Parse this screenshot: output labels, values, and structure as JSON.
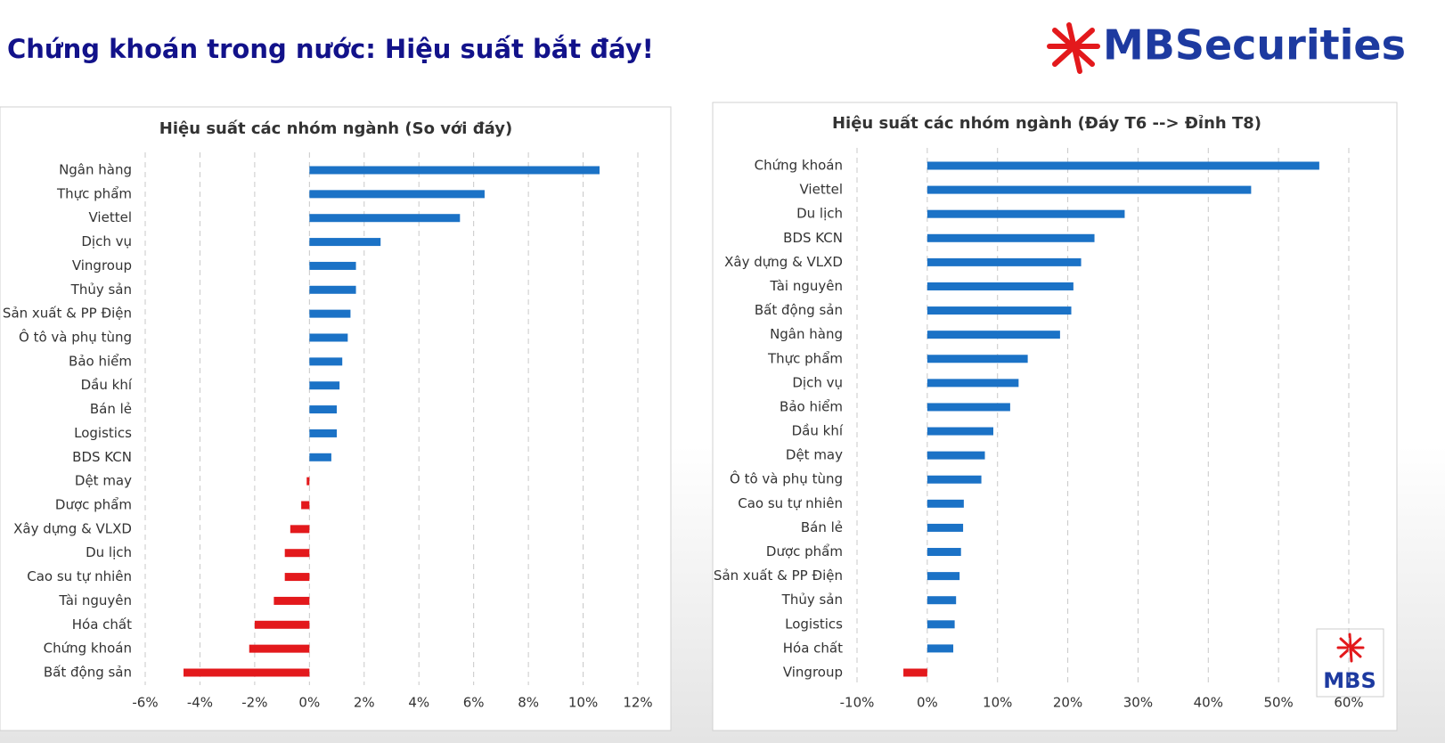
{
  "header": {
    "title": "Chứng khoán trong nước: Hiệu suất bắt đáy!",
    "logo": "MBSecurities",
    "badge": "MBS"
  },
  "chart_data": [
    {
      "type": "bar",
      "orientation": "horizontal",
      "title": "Hiệu suất các nhóm ngành (So với đáy)",
      "categories": [
        "Ngân hàng",
        "Thực phẩm",
        "Viettel",
        "Dịch vụ",
        "Vingroup",
        "Thủy sản",
        "Sản xuất & PP Điện",
        "Ô tô và phụ tùng",
        "Bảo hiểm",
        "Dầu khí",
        "Bán lẻ",
        "Logistics",
        "BDS KCN",
        "Dệt may",
        "Dược phẩm",
        "Xây dựng & VLXD",
        "Du lịch",
        "Cao su tự nhiên",
        "Tài nguyên",
        "Hóa chất",
        "Chứng khoán",
        "Bất động sản"
      ],
      "values": [
        10.6,
        6.4,
        5.5,
        2.6,
        1.7,
        1.7,
        1.5,
        1.4,
        1.2,
        1.1,
        1.0,
        1.0,
        0.8,
        -0.1,
        -0.3,
        -0.7,
        -0.9,
        -0.9,
        -1.3,
        -2.0,
        -2.2,
        -4.6
      ],
      "color": "#1b72c6",
      "negative_color": "#e3191c",
      "xlim": [
        -6,
        12
      ],
      "xticks": [
        {
          "value": -6,
          "label": "-6%"
        },
        {
          "value": -4,
          "label": "-4%"
        },
        {
          "value": -2,
          "label": "-2%"
        },
        {
          "value": 0,
          "label": "0%"
        },
        {
          "value": 2,
          "label": "2%"
        },
        {
          "value": 4,
          "label": "4%"
        },
        {
          "value": 6,
          "label": "6%"
        },
        {
          "value": 8,
          "label": "8%"
        },
        {
          "value": 10,
          "label": "10%"
        },
        {
          "value": 12,
          "label": "12%"
        }
      ],
      "grid": true
    },
    {
      "type": "bar",
      "orientation": "horizontal",
      "title": "Hiệu suất các nhóm ngành (Đáy T6 --> Đỉnh T8)",
      "categories": [
        "Chứng khoán",
        "Viettel",
        "Du lịch",
        "BDS KCN",
        "Xây dựng & VLXD",
        "Tài nguyên",
        "Bất động sản",
        "Ngân hàng",
        "Thực phẩm",
        "Dịch vụ",
        "Bảo hiểm",
        "Dầu khí",
        "Dệt may",
        "Ô tô và phụ tùng",
        "Cao su tự nhiên",
        "Bán lẻ",
        "Dược phẩm",
        "Sản xuất & PP Điện",
        "Thủy sản",
        "Logistics",
        "Hóa chất",
        "Vingroup"
      ],
      "values": [
        55.8,
        46.1,
        28.1,
        23.8,
        21.9,
        20.8,
        20.5,
        18.9,
        14.3,
        13.0,
        11.8,
        9.4,
        8.2,
        7.7,
        5.2,
        5.1,
        4.8,
        4.6,
        4.1,
        3.9,
        3.7,
        -3.4
      ],
      "color": "#1b72c6",
      "negative_color": "#e3191c",
      "xlim": [
        -10,
        60
      ],
      "xticks": [
        {
          "value": -10,
          "label": "-10%"
        },
        {
          "value": 0,
          "label": "0%"
        },
        {
          "value": 10,
          "label": "10%"
        },
        {
          "value": 20,
          "label": "20%"
        },
        {
          "value": 30,
          "label": "30%"
        },
        {
          "value": 40,
          "label": "40%"
        },
        {
          "value": 50,
          "label": "50%"
        },
        {
          "value": 60,
          "label": "60%"
        }
      ],
      "grid": true
    }
  ]
}
